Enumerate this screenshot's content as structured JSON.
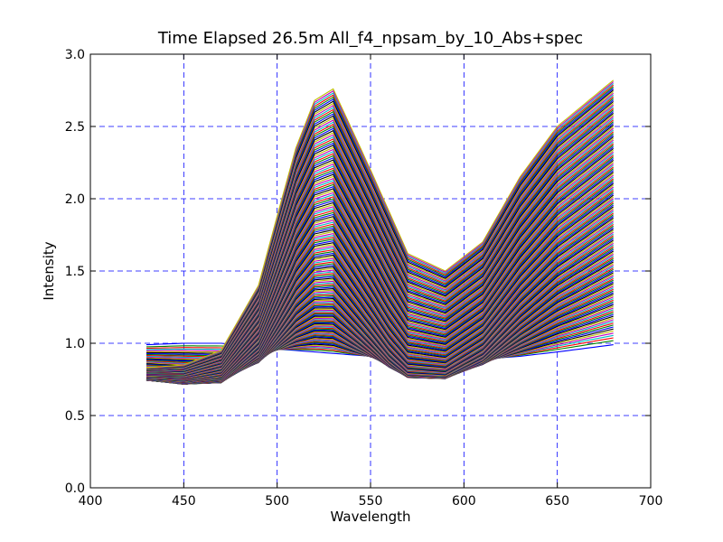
{
  "chart_data": {
    "type": "line",
    "title": "Time Elapsed   26.5m   All_f4_npsam_by_10_Abs+spec",
    "xlabel": "Wavelength",
    "ylabel": "Intensity",
    "xlim": [
      400,
      700
    ],
    "ylim": [
      0.0,
      3.0
    ],
    "xticks": [
      400,
      450,
      500,
      550,
      600,
      650,
      700
    ],
    "xtick_labels": [
      "400",
      "450",
      "500",
      "550",
      "600",
      "650",
      "700"
    ],
    "yticks": [
      0.0,
      0.5,
      1.0,
      1.5,
      2.0,
      2.5,
      3.0
    ],
    "ytick_labels": [
      "0.0",
      "0.5",
      "1.0",
      "1.5",
      "2.0",
      "2.5",
      "3.0"
    ],
    "grid": true,
    "x_range": [
      430,
      680
    ],
    "series_count": 160,
    "series_note": "Family of spectra; each approximated by representative points in data units",
    "first_series": {
      "x": [
        430,
        450,
        470,
        490,
        500,
        510,
        520,
        530,
        550,
        570,
        590,
        610,
        630,
        650,
        680
      ],
      "y": [
        0.99,
        1.0,
        1.0,
        0.98,
        0.96,
        0.95,
        0.94,
        0.93,
        0.91,
        0.89,
        0.88,
        0.89,
        0.91,
        0.94,
        0.99
      ]
    },
    "last_series": {
      "x": [
        430,
        450,
        470,
        490,
        500,
        510,
        520,
        530,
        550,
        570,
        590,
        610,
        630,
        650,
        680
      ],
      "y": [
        0.83,
        0.85,
        0.95,
        1.4,
        1.88,
        2.35,
        2.68,
        2.76,
        2.2,
        1.62,
        1.5,
        1.7,
        2.15,
        2.5,
        2.82
      ]
    },
    "colors": [
      "#0000ff",
      "#008000",
      "#ff0000",
      "#00bfbf",
      "#bf00bf",
      "#bfbf00",
      "#000000"
    ]
  }
}
